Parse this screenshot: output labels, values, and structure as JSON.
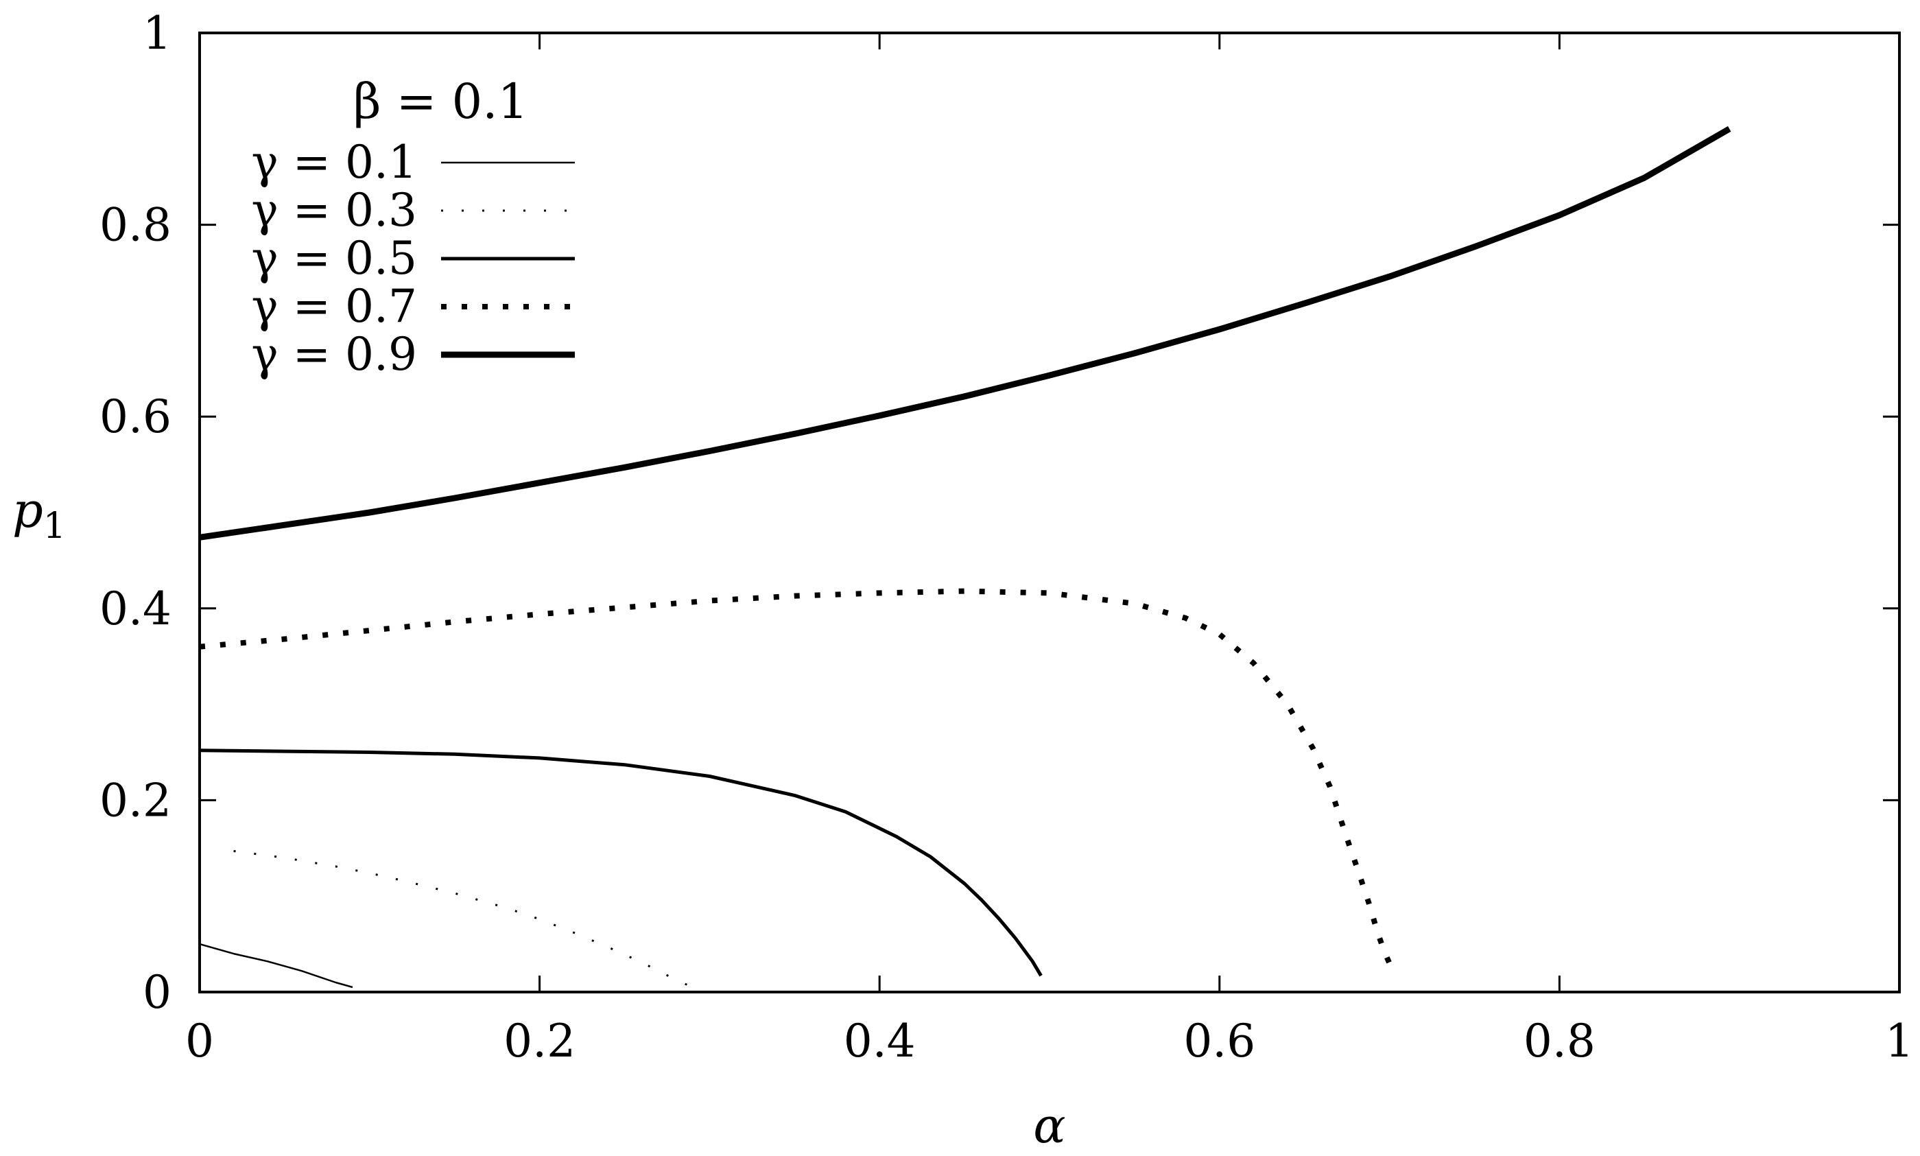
{
  "chart_data": {
    "type": "line",
    "title": "",
    "xlabel": "α",
    "ylabel": "p",
    "ylabel_subscript": "1",
    "xlim": [
      0,
      1
    ],
    "ylim": [
      0,
      1
    ],
    "x_ticks": [
      0,
      0.2,
      0.4,
      0.6,
      0.8,
      1
    ],
    "x_tick_labels": [
      "0",
      "0.2",
      "0.4",
      "0.6",
      "0.8",
      "1"
    ],
    "y_ticks": [
      0,
      0.2,
      0.4,
      0.6,
      0.8,
      1
    ],
    "y_tick_labels": [
      "0",
      "0.2",
      "0.4",
      "0.6",
      "0.8",
      "1"
    ],
    "grid": false,
    "legend_position": "top-left",
    "legend_title": "β = 0.1",
    "series": [
      {
        "name": "γ = 0.1",
        "line_style": "thin-solid",
        "x": [
          0,
          0.02,
          0.04,
          0.06,
          0.08,
          0.09
        ],
        "y": [
          0.05,
          0.04,
          0.032,
          0.022,
          0.01,
          0.005
        ]
      },
      {
        "name": "γ = 0.3",
        "line_style": "thin-dotted",
        "x": [
          0.02,
          0.05,
          0.08,
          0.1,
          0.12,
          0.15,
          0.18,
          0.2,
          0.22,
          0.24,
          0.26,
          0.28,
          0.29
        ],
        "y": [
          0.147,
          0.14,
          0.131,
          0.124,
          0.116,
          0.103,
          0.088,
          0.076,
          0.062,
          0.047,
          0.031,
          0.013,
          0.005
        ]
      },
      {
        "name": "γ = 0.5",
        "line_style": "solid",
        "x": [
          0,
          0.05,
          0.1,
          0.15,
          0.2,
          0.25,
          0.3,
          0.35,
          0.38,
          0.41,
          0.43,
          0.45,
          0.46,
          0.47,
          0.48,
          0.49,
          0.495
        ],
        "y": [
          0.252,
          0.251,
          0.25,
          0.248,
          0.244,
          0.237,
          0.225,
          0.205,
          0.188,
          0.162,
          0.141,
          0.113,
          0.096,
          0.077,
          0.056,
          0.032,
          0.017
        ]
      },
      {
        "name": "γ = 0.7",
        "line_style": "dotted",
        "x": [
          0,
          0.05,
          0.1,
          0.15,
          0.2,
          0.25,
          0.3,
          0.35,
          0.4,
          0.45,
          0.5,
          0.55,
          0.58,
          0.6,
          0.62,
          0.64,
          0.655,
          0.665,
          0.675,
          0.682,
          0.688,
          0.693,
          0.697,
          0.7
        ],
        "y": [
          0.36,
          0.368,
          0.377,
          0.386,
          0.394,
          0.401,
          0.408,
          0.413,
          0.416,
          0.418,
          0.416,
          0.405,
          0.39,
          0.373,
          0.343,
          0.3,
          0.254,
          0.214,
          0.16,
          0.124,
          0.092,
          0.062,
          0.042,
          0.03
        ]
      },
      {
        "name": "γ = 0.9",
        "line_style": "thick-solid",
        "x": [
          0,
          0.05,
          0.1,
          0.15,
          0.2,
          0.25,
          0.3,
          0.35,
          0.4,
          0.45,
          0.5,
          0.55,
          0.6,
          0.65,
          0.7,
          0.75,
          0.8,
          0.85,
          0.9
        ],
        "y": [
          0.474,
          0.487,
          0.5,
          0.515,
          0.531,
          0.547,
          0.564,
          0.582,
          0.601,
          0.621,
          0.643,
          0.666,
          0.691,
          0.718,
          0.746,
          0.777,
          0.81,
          0.849,
          0.9
        ]
      }
    ]
  }
}
